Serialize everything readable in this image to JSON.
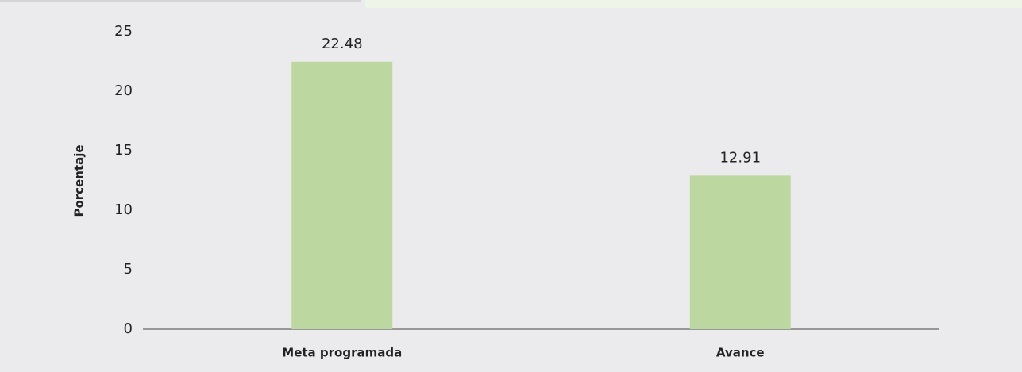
{
  "chart_data": {
    "type": "bar",
    "y_label": "Porcentaje",
    "categories": [
      "Meta programada",
      "Avance"
    ],
    "values": [
      22.48,
      12.91
    ],
    "color": "#bdd7a0",
    "ylim": [
      0,
      25
    ],
    "yticks": [
      0,
      5,
      10,
      15,
      20,
      25
    ],
    "grid": false,
    "data_labels": true
  }
}
